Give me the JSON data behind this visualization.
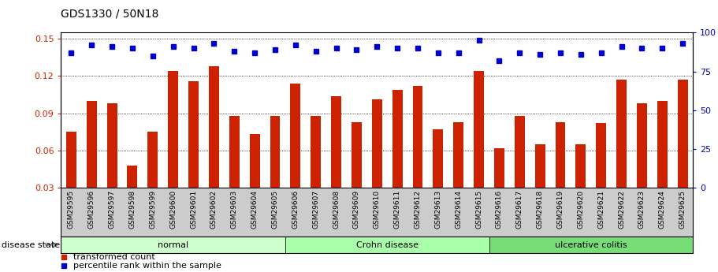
{
  "title": "GDS1330 / 50N18",
  "samples": [
    "GSM29595",
    "GSM29596",
    "GSM29597",
    "GSM29598",
    "GSM29599",
    "GSM29600",
    "GSM29601",
    "GSM29602",
    "GSM29603",
    "GSM29604",
    "GSM29605",
    "GSM29606",
    "GSM29607",
    "GSM29608",
    "GSM29609",
    "GSM29610",
    "GSM29611",
    "GSM29612",
    "GSM29613",
    "GSM29614",
    "GSM29615",
    "GSM29616",
    "GSM29617",
    "GSM29618",
    "GSM29619",
    "GSM29620",
    "GSM29621",
    "GSM29622",
    "GSM29623",
    "GSM29624",
    "GSM29625"
  ],
  "bar_values": [
    0.075,
    0.1,
    0.098,
    0.048,
    0.075,
    0.124,
    0.116,
    0.128,
    0.088,
    0.073,
    0.088,
    0.114,
    0.088,
    0.104,
    0.083,
    0.101,
    0.109,
    0.112,
    0.077,
    0.083,
    0.124,
    0.062,
    0.088,
    0.065,
    0.083,
    0.065,
    0.082,
    0.117,
    0.098,
    0.1,
    0.117
  ],
  "percentile_values": [
    87,
    92,
    91,
    90,
    85,
    91,
    90,
    93,
    88,
    87,
    89,
    92,
    88,
    90,
    89,
    91,
    90,
    90,
    87,
    87,
    95,
    82,
    87,
    86,
    87,
    86,
    87,
    91,
    90,
    90,
    93
  ],
  "bar_color": "#cc2200",
  "dot_color": "#0000cc",
  "ylim_left": [
    0.03,
    0.155
  ],
  "ylim_right": [
    0,
    100
  ],
  "yticks_left": [
    0.03,
    0.06,
    0.09,
    0.12,
    0.15
  ],
  "yticks_right": [
    0,
    25,
    50,
    75,
    100
  ],
  "groups": [
    {
      "label": "normal",
      "start": 0,
      "end": 10,
      "color": "#ccffcc"
    },
    {
      "label": "Crohn disease",
      "start": 11,
      "end": 20,
      "color": "#aaffaa"
    },
    {
      "label": "ulcerative colitis",
      "start": 21,
      "end": 30,
      "color": "#77dd77"
    }
  ],
  "disease_state_label": "disease state",
  "legend_bar_label": "transformed count",
  "legend_dot_label": "percentile rank within the sample",
  "bar_width": 0.5,
  "background_color": "#ffffff"
}
